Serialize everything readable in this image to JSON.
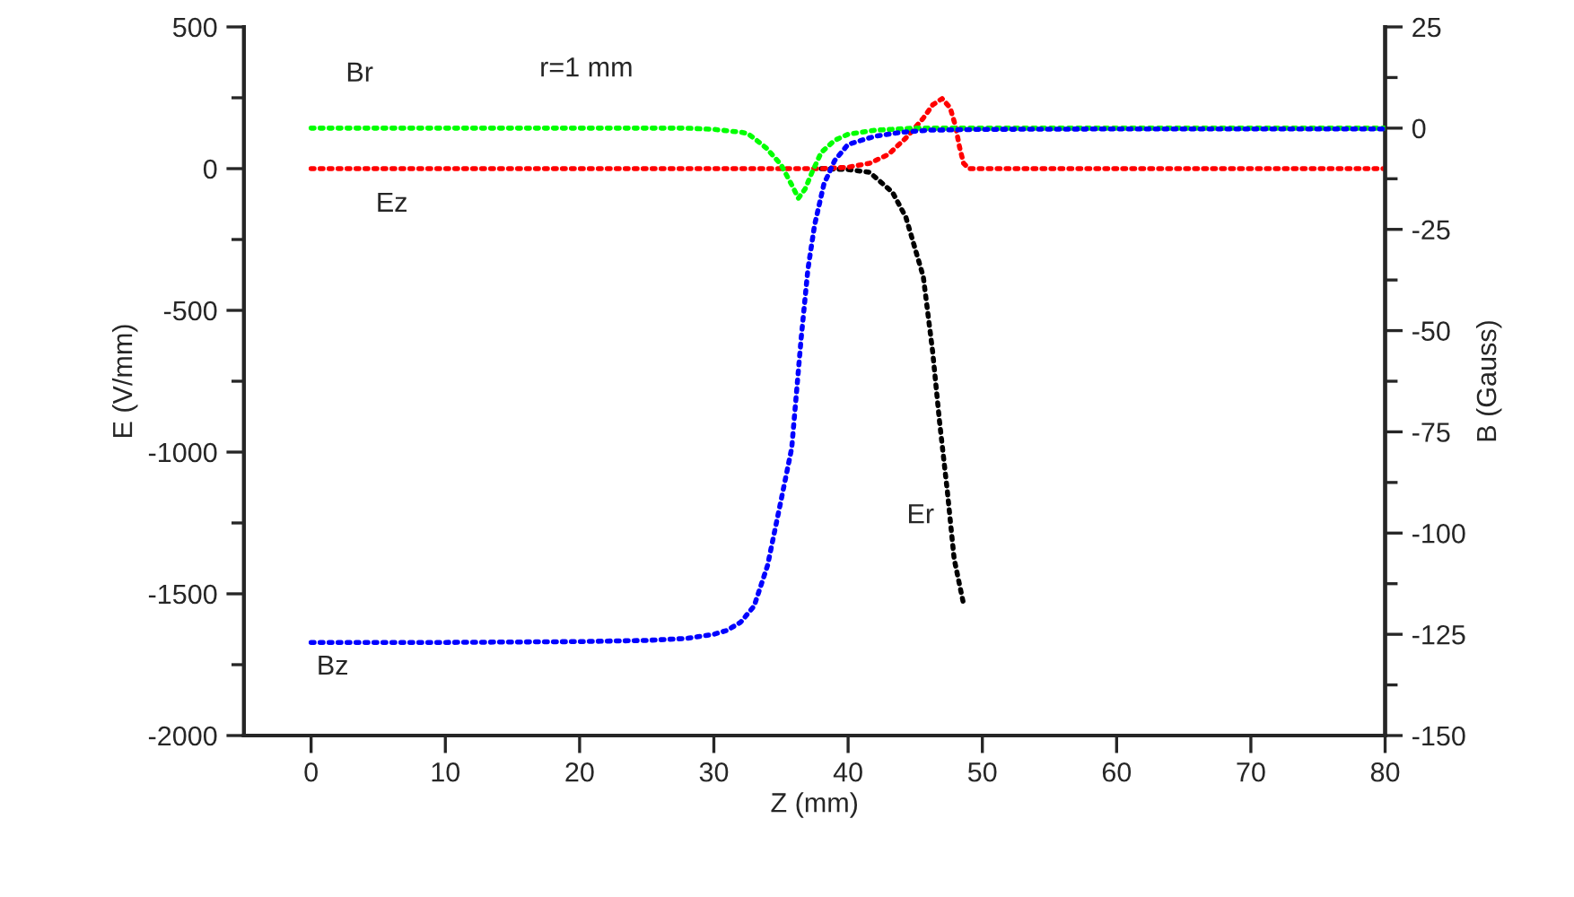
{
  "chart_data": {
    "type": "line",
    "xlabel": "Z (mm)",
    "ylabel": "E (V/mm)",
    "y2label": "B (Gauss)",
    "xlim": [
      -5,
      80
    ],
    "xticks": [
      0,
      10,
      20,
      30,
      40,
      50,
      60,
      70,
      80
    ],
    "ylim": [
      -2000,
      500
    ],
    "yticks": [
      -2000,
      -1500,
      -1000,
      -500,
      0,
      500
    ],
    "y2lim": [
      -150,
      25
    ],
    "y2ticks": [
      -150,
      -125,
      -100,
      -75,
      -50,
      -25,
      0,
      25
    ],
    "grid": false,
    "legend": false,
    "line_style": "dotted",
    "marker": "none",
    "series": [
      {
        "name": "Br",
        "color": "#00ff00",
        "axis": "y2",
        "x": [
          0,
          10,
          20,
          28,
          30,
          32,
          32.5,
          33,
          33.9,
          35,
          35.8,
          36.3,
          36.8,
          37.3,
          38,
          39,
          40,
          42,
          45,
          60,
          80
        ],
        "values": [
          0,
          0,
          0,
          0,
          -0.3,
          -1,
          -1.3,
          -2.5,
          -4.9,
          -9,
          -14,
          -17.3,
          -15,
          -11,
          -6,
          -3,
          -1.5,
          -0.5,
          0,
          0,
          0
        ]
      },
      {
        "name": "Bz",
        "color": "#0000ff",
        "axis": "y2",
        "x": [
          0,
          10,
          20,
          25,
          28,
          30,
          31,
          32,
          33,
          34,
          35,
          35.8,
          36.5,
          37,
          37.5,
          38.2,
          39,
          40,
          42,
          44,
          46,
          50,
          60,
          80
        ],
        "values": [
          -127,
          -127,
          -126.8,
          -126.5,
          -126,
          -125,
          -124,
          -122,
          -118,
          -108,
          -92,
          -79,
          -52,
          -35,
          -24,
          -13.8,
          -8,
          -4,
          -2,
          -1,
          -0.5,
          -0.3,
          -0.2,
          -0.2
        ]
      },
      {
        "name": "Ez",
        "color": "#ff0000",
        "x": [
          0,
          30,
          38,
          40,
          41.6,
          43,
          44.3,
          45.6,
          46.3,
          47,
          47.6,
          48,
          48.3,
          48.6,
          49,
          60,
          80
        ],
        "values": [
          0,
          0,
          0,
          5,
          19,
          50,
          108,
          178,
          225,
          247,
          215,
          150,
          76,
          19,
          0,
          0,
          0
        ]
      },
      {
        "name": "Er",
        "color": "#000000",
        "x": [
          38,
          40,
          41.6,
          43.3,
          44.3,
          45.6,
          46.3,
          46.8,
          47.4,
          47.9,
          48.6
        ],
        "values": [
          0,
          -3,
          -13,
          -83,
          -171,
          -381,
          -647,
          -888,
          -1142,
          -1377,
          -1536
        ]
      }
    ],
    "annotations": [
      "r=1 mm"
    ]
  }
}
